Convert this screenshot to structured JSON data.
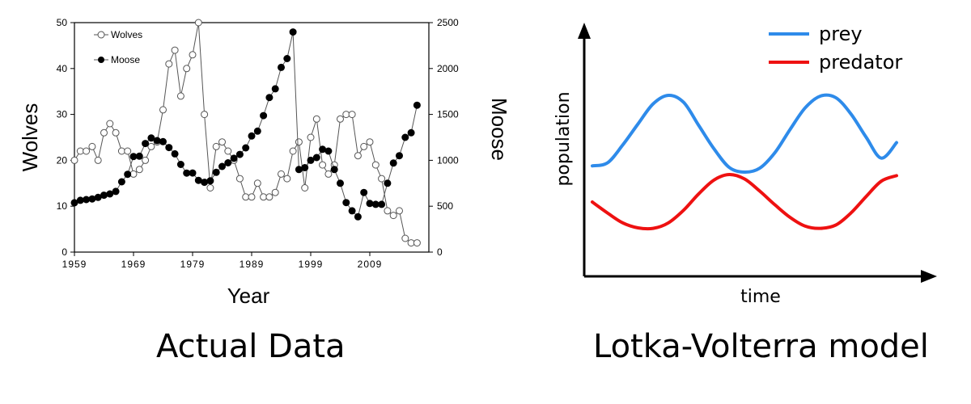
{
  "captions": {
    "left": "Actual Data",
    "right": "Lotka-Volterra model"
  },
  "colors": {
    "prey": "#2e8bea",
    "predator": "#ee1111",
    "wolves_marker_fill": "#ffffff",
    "moose_marker_fill": "#000000",
    "line": "#555555"
  },
  "chart_data": [
    {
      "type": "line",
      "xlabel": "Year",
      "ylabel": "Wolves",
      "ylabel_right": "Moose",
      "xlim": [
        1959,
        2019
      ],
      "ylim": [
        0,
        50
      ],
      "ylim_right": [
        0,
        2500
      ],
      "x_ticks": [
        "1959",
        "1969",
        "1979",
        "1989",
        "1999",
        "2009"
      ],
      "y_ticks": [
        "0",
        "10",
        "20",
        "30",
        "40",
        "50"
      ],
      "y_ticks_right": [
        "0",
        "500",
        "1000",
        "1500",
        "2000",
        "2500"
      ],
      "legend": [
        "Wolves",
        "Moose"
      ],
      "legend_position": "top-left",
      "x": [
        1959,
        1960,
        1961,
        1962,
        1963,
        1964,
        1965,
        1966,
        1967,
        1968,
        1969,
        1970,
        1971,
        1972,
        1973,
        1974,
        1975,
        1976,
        1977,
        1978,
        1979,
        1980,
        1981,
        1982,
        1983,
        1984,
        1985,
        1986,
        1987,
        1988,
        1989,
        1990,
        1991,
        1992,
        1993,
        1994,
        1995,
        1996,
        1997,
        1998,
        1999,
        2000,
        2001,
        2002,
        2003,
        2004,
        2005,
        2006,
        2007,
        2008,
        2009,
        2010,
        2011,
        2012,
        2013,
        2014,
        2015,
        2016,
        2017,
        2018,
        2019
      ],
      "series": [
        {
          "name": "Wolves",
          "axis": "left",
          "marker": "open-circle",
          "values": [
            20,
            22,
            22,
            23,
            20,
            26,
            28,
            26,
            22,
            22,
            17,
            18,
            20,
            23,
            24,
            31,
            41,
            44,
            34,
            40,
            43,
            50,
            30,
            14,
            23,
            24,
            22,
            20,
            16,
            12,
            12,
            15,
            12,
            12,
            13,
            17,
            16,
            22,
            24,
            14,
            25,
            29,
            19,
            17,
            19,
            29,
            30,
            30,
            21,
            23,
            24,
            19,
            16,
            9,
            8,
            9,
            3,
            2,
            2,
            null,
            null
          ]
        },
        {
          "name": "Moose",
          "axis": "right",
          "marker": "filled-circle",
          "values": [
            538,
            564,
            572,
            579,
            596,
            620,
            634,
            661,
            766,
            848,
            1041,
            1045,
            1183,
            1243,
            1215,
            1203,
            1139,
            1070,
            955,
            861,
            862,
            782,
            761,
            776,
            869,
            933,
            973,
            1022,
            1064,
            1136,
            1265,
            1318,
            1487,
            1684,
            1779,
            2012,
            2108,
            2398,
            900,
            920,
            1000,
            1030,
            1120,
            1100,
            900,
            750,
            540,
            450,
            385,
            650,
            530,
            520,
            520,
            750,
            970,
            1050,
            1250,
            1300,
            1600,
            null,
            null
          ]
        }
      ]
    },
    {
      "type": "line",
      "xlabel": "time",
      "ylabel": "population",
      "axis_ticks": false,
      "legend": [
        "prey",
        "predator"
      ],
      "legend_position": "top-right",
      "x": [
        0,
        0.05,
        0.1,
        0.15,
        0.2,
        0.25,
        0.3,
        0.35,
        0.4,
        0.45,
        0.5,
        0.55,
        0.6,
        0.65,
        0.7,
        0.75,
        0.8,
        0.85,
        0.9,
        0.95,
        1.0
      ],
      "series": [
        {
          "name": "prey",
          "values": [
            0.08,
            0.12,
            0.35,
            0.62,
            0.88,
            0.99,
            0.9,
            0.6,
            0.3,
            0.06,
            0.0,
            0.05,
            0.25,
            0.55,
            0.83,
            0.98,
            0.96,
            0.75,
            0.45,
            0.18,
            0.38
          ]
        },
        {
          "name": "predator",
          "values": [
            0.5,
            0.3,
            0.12,
            0.03,
            0.02,
            0.12,
            0.35,
            0.65,
            0.9,
            1.0,
            0.92,
            0.7,
            0.45,
            0.22,
            0.06,
            0.02,
            0.08,
            0.3,
            0.6,
            0.88,
            0.98
          ]
        }
      ]
    }
  ]
}
